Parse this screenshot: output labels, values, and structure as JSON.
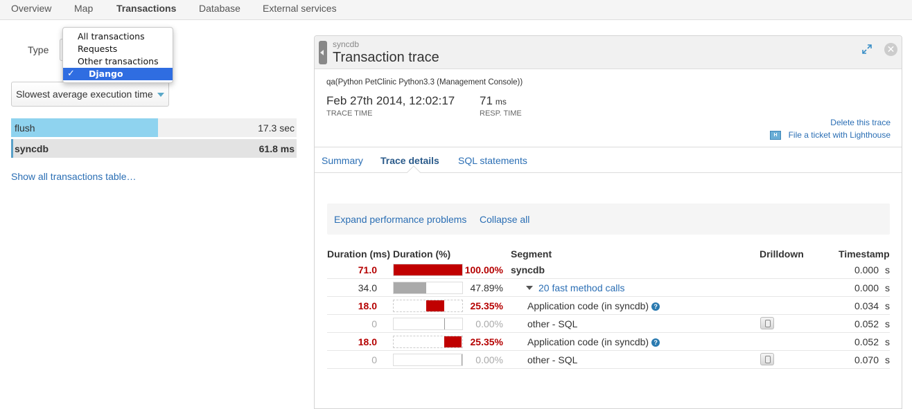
{
  "topnav": {
    "tabs": [
      {
        "label": "Overview"
      },
      {
        "label": "Map"
      },
      {
        "label": "Transactions",
        "active": true
      },
      {
        "label": "Database"
      },
      {
        "label": "External services"
      }
    ]
  },
  "filters": {
    "type_label": "Type",
    "type_options": [
      "All transactions",
      "Requests",
      "Other transactions",
      "Django"
    ],
    "type_selected": "Django",
    "checkmark": "✓",
    "sort_label": "Slowest average execution time"
  },
  "transactions": [
    {
      "name": "flush",
      "value": "17.3 sec",
      "fill_fraction": 0.72,
      "bar_color": "#8fd3ef"
    },
    {
      "name": "syncdb",
      "value": "61.8 ms",
      "fill_fraction": 1.0,
      "bar_color": "#e3e3e3",
      "selected": true
    }
  ],
  "show_all_link": "Show all transactions table…",
  "trace": {
    "app_label": "syncdb",
    "title": "Transaction trace",
    "close_glyph": "✕",
    "app_name": "qa(Python PetClinic Python3.3 (Management Console))",
    "trace_time": "Feb 27th 2014, 12:02:17",
    "trace_time_label": "TRACE TIME",
    "resp_time": "71",
    "resp_time_unit": "ms",
    "resp_time_label": "RESP. TIME",
    "delete_link": "Delete this trace",
    "ticket_link": "File a ticket with Lighthouse",
    "lighthouse_glyph": "H",
    "tabs": [
      {
        "label": "Summary"
      },
      {
        "label": "Trace details",
        "active": true
      },
      {
        "label": "SQL statements"
      }
    ],
    "toolbar": {
      "expand": "Expand performance problems",
      "collapse": "Collapse all"
    },
    "columns": {
      "duration_ms": "Duration (ms)",
      "duration_pct": "Duration (%)",
      "segment": "Segment",
      "drilldown": "Drilldown",
      "timestamp": "Timestamp"
    },
    "rows": [
      {
        "ms": "71.0",
        "pct": "100.00%",
        "segment": "syncdb",
        "timestamp": "0.000",
        "unit": "s",
        "bar_start": 0.0,
        "bar_fraction": 1.0,
        "color": "#c00000",
        "style": "red",
        "bold_segment": true,
        "indent": 0,
        "drilldown": false,
        "help": false,
        "expander": false
      },
      {
        "ms": "34.0",
        "pct": "47.89%",
        "segment": "20 fast method calls",
        "timestamp": "0.000",
        "unit": "s",
        "bar_start": 0.0,
        "bar_fraction": 0.4789,
        "color": "#aaaaaa",
        "style": "normal",
        "bold_segment": false,
        "indent": 1,
        "drilldown": false,
        "help": false,
        "expander": true
      },
      {
        "ms": "18.0",
        "pct": "25.35%",
        "segment": "Application code (in syncdb)",
        "timestamp": "0.034",
        "unit": "s",
        "bar_start": 0.4789,
        "bar_fraction": 0.2535,
        "color": "#c00000",
        "style": "red",
        "bold_segment": false,
        "indent": 2,
        "drilldown": false,
        "help": true,
        "expander": false
      },
      {
        "ms": "0",
        "pct": "0.00%",
        "segment": "other - SQL",
        "timestamp": "0.052",
        "unit": "s",
        "bar_start": 0.7324,
        "bar_fraction": 0.0,
        "color": "#aaaaaa",
        "style": "gray",
        "bold_segment": false,
        "indent": 2,
        "drilldown": true,
        "help": false,
        "expander": false
      },
      {
        "ms": "18.0",
        "pct": "25.35%",
        "segment": "Application code (in syncdb)",
        "timestamp": "0.052",
        "unit": "s",
        "bar_start": 0.7324,
        "bar_fraction": 0.2535,
        "color": "#c00000",
        "style": "red",
        "bold_segment": false,
        "indent": 2,
        "drilldown": false,
        "help": true,
        "expander": false
      },
      {
        "ms": "0",
        "pct": "0.00%",
        "segment": "other - SQL",
        "timestamp": "0.070",
        "unit": "s",
        "bar_start": 0.9859,
        "bar_fraction": 0.0,
        "color": "#aaaaaa",
        "style": "gray",
        "bold_segment": false,
        "indent": 2,
        "drilldown": true,
        "help": false,
        "expander": false
      }
    ]
  }
}
